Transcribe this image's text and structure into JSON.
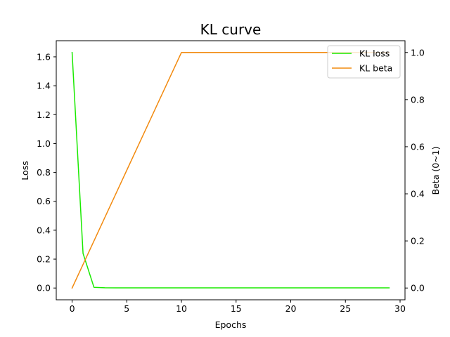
{
  "chart_data": {
    "type": "line",
    "title": "KL curve",
    "xlabel": "Epochs",
    "ylabel": "Loss",
    "ylabel_right": "Beta (0~1)",
    "xlim": [
      -1.45,
      30.45
    ],
    "ylim": [
      -0.0815,
      1.7115
    ],
    "ylim_right": [
      -0.05,
      1.05
    ],
    "xticks": [
      0,
      5,
      10,
      15,
      20,
      25,
      30
    ],
    "yticks": [
      0.0,
      0.2,
      0.4,
      0.6,
      0.8,
      1.0,
      1.2,
      1.4,
      1.6
    ],
    "yticks_right": [
      0.0,
      0.2,
      0.4,
      0.6,
      0.8,
      1.0
    ],
    "x": [
      0,
      1,
      2,
      3,
      4,
      5,
      6,
      7,
      8,
      9,
      10,
      11,
      12,
      13,
      14,
      15,
      16,
      17,
      18,
      19,
      20,
      21,
      22,
      23,
      24,
      25,
      26,
      27,
      28,
      29
    ],
    "series": [
      {
        "name": "KL loss",
        "axis": "left",
        "color": "#1aea00",
        "values": [
          1.63,
          0.24,
          0.005,
          0.002,
          0.001,
          0.001,
          0.001,
          0.001,
          0.001,
          0.001,
          0.001,
          0.001,
          0.001,
          0.001,
          0.001,
          0.001,
          0.001,
          0.001,
          0.001,
          0.001,
          0.001,
          0.001,
          0.001,
          0.001,
          0.001,
          0.001,
          0.001,
          0.001,
          0.001,
          0.001
        ]
      },
      {
        "name": "KL beta",
        "axis": "right",
        "color": "#f28a0f",
        "values": [
          0.0,
          0.1,
          0.2,
          0.3,
          0.4,
          0.5,
          0.6,
          0.7,
          0.8,
          0.9,
          1.0,
          1.0,
          1.0,
          1.0,
          1.0,
          1.0,
          1.0,
          1.0,
          1.0,
          1.0,
          1.0,
          1.0,
          1.0,
          1.0,
          1.0,
          1.0,
          1.0,
          1.0,
          1.0,
          1.0
        ]
      }
    ],
    "grid": false,
    "legend": "top-right"
  }
}
